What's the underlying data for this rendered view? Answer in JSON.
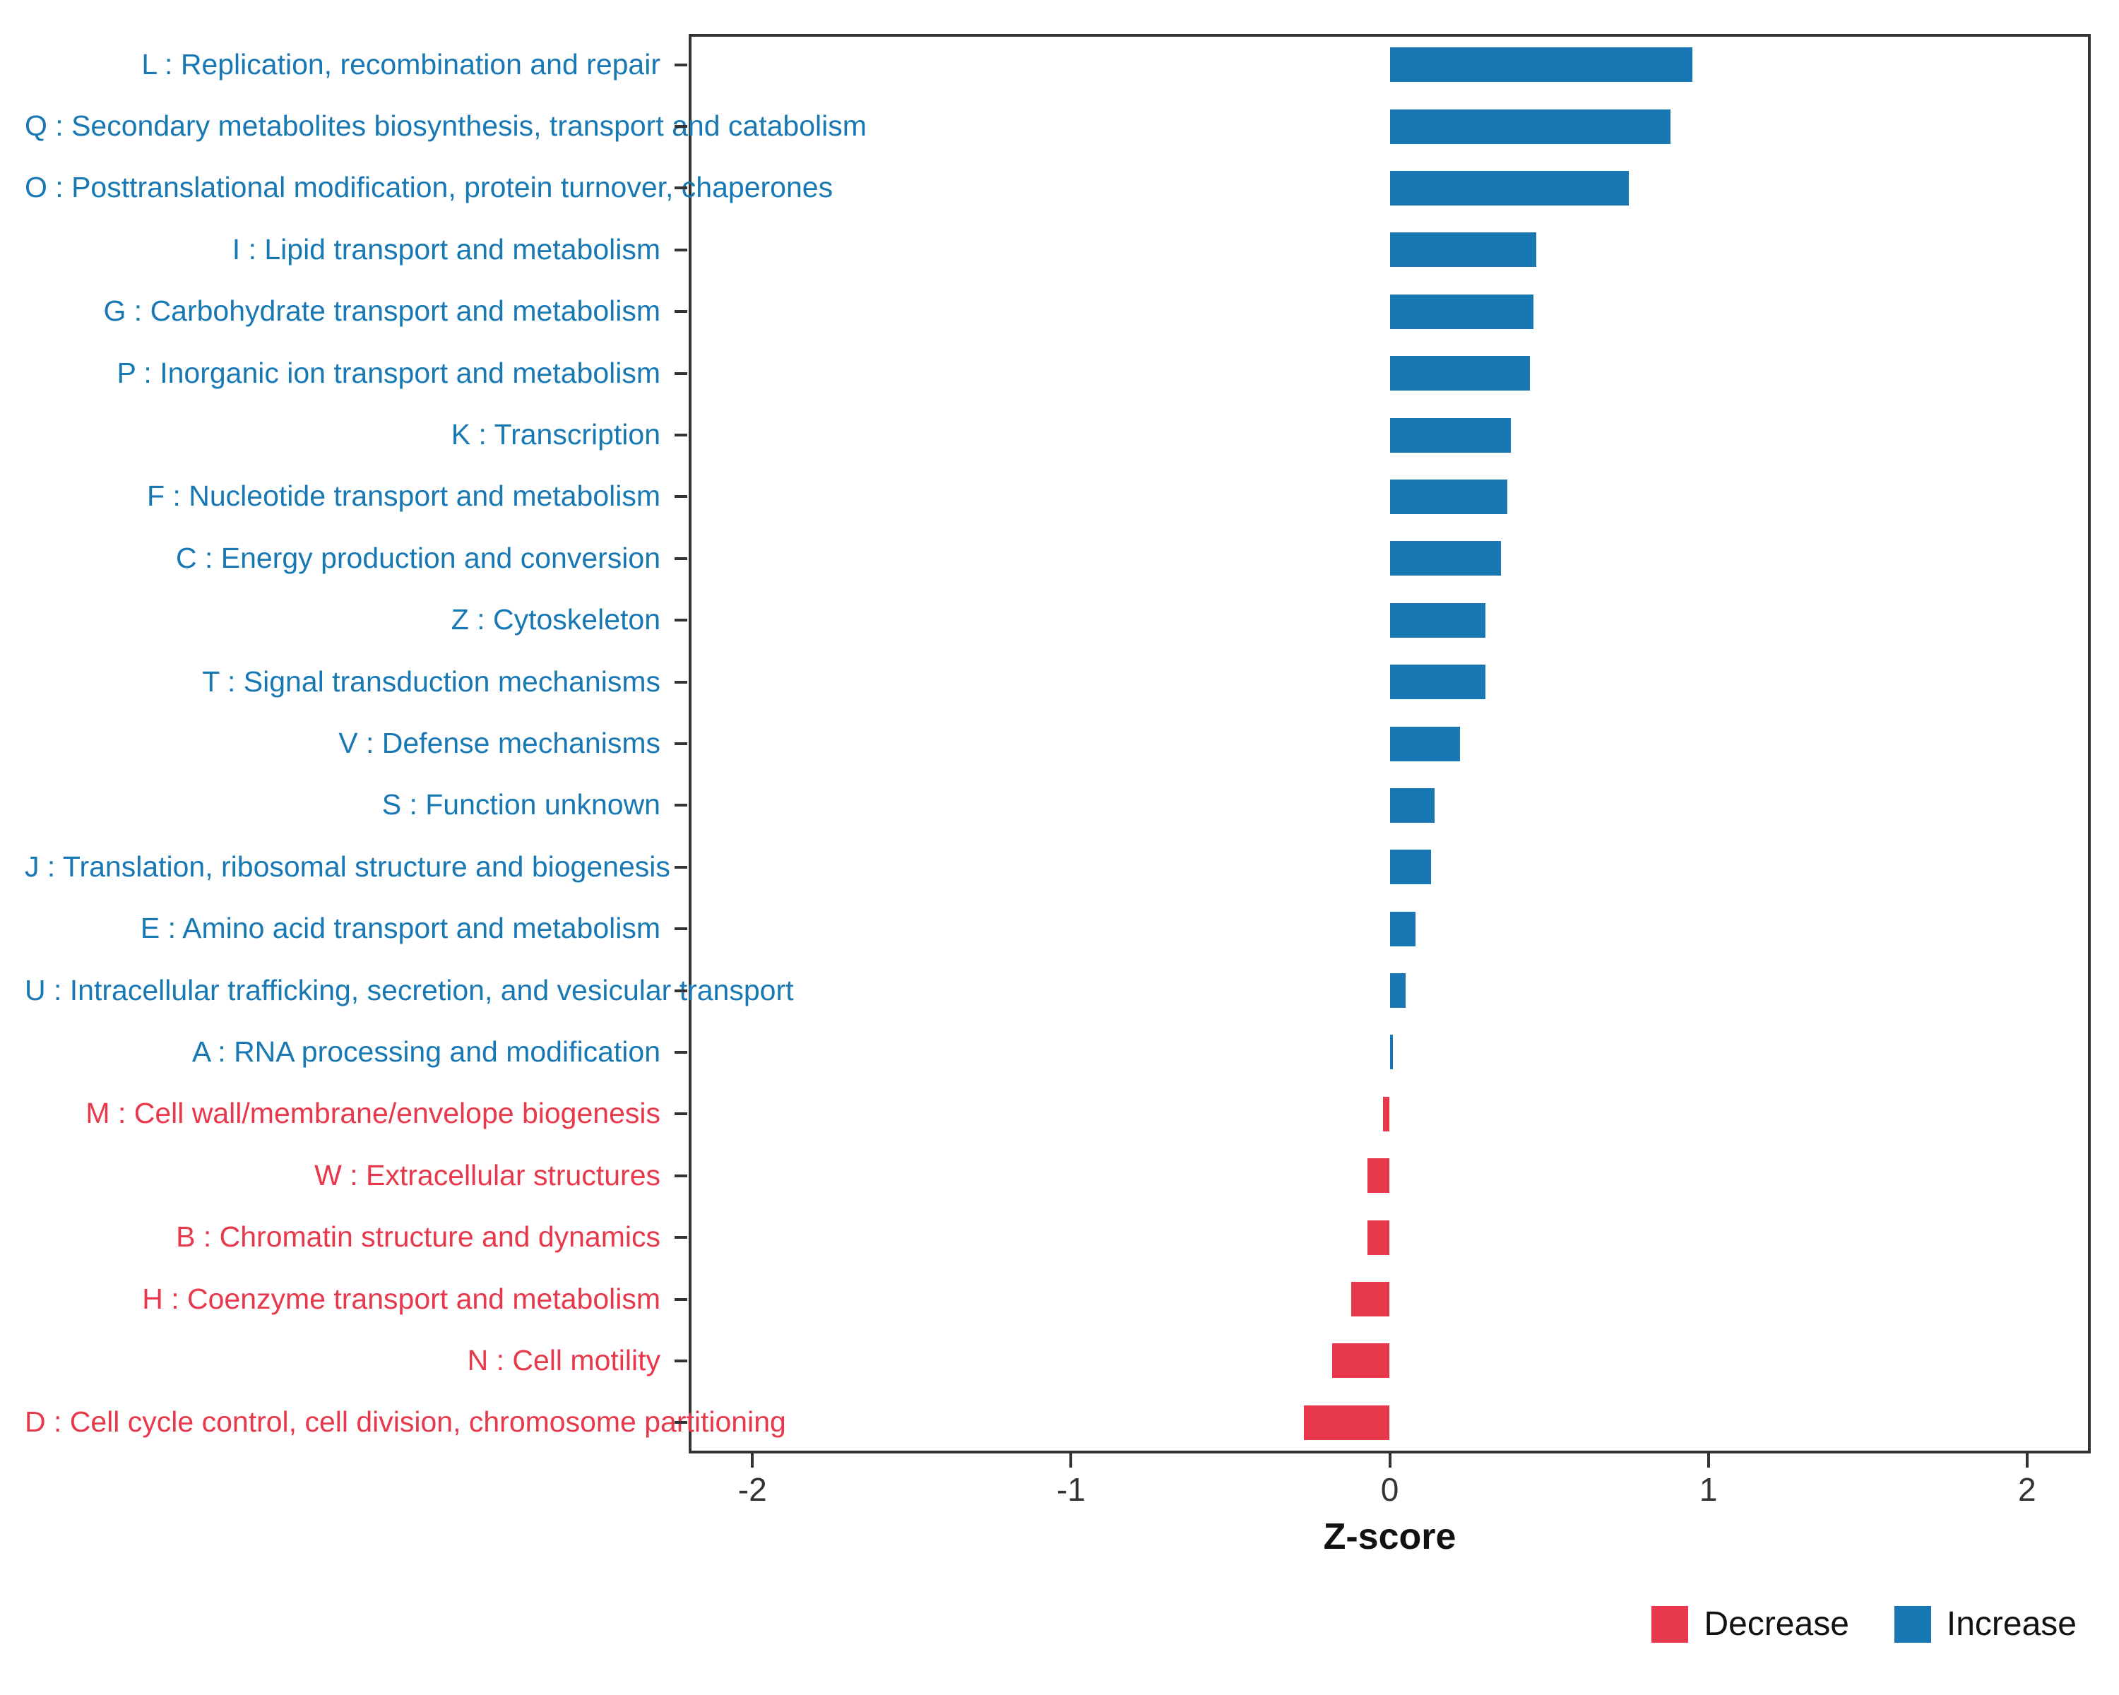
{
  "chart_data": {
    "type": "bar",
    "orientation": "horizontal",
    "xlabel": "Z-score",
    "xlim": [
      -2.2,
      2.2
    ],
    "xticks": [
      -2,
      -1,
      0,
      1,
      2
    ],
    "grid": false,
    "legend_position": "bottom-right",
    "colors": {
      "increase": "#1878B4",
      "decrease": "#E8384B",
      "axis_text": "#333333",
      "panel_border": "#333333"
    },
    "legend": [
      {
        "label": "Decrease",
        "color": "#E8384B"
      },
      {
        "label": "Increase",
        "color": "#1878B4"
      }
    ],
    "bars": [
      {
        "label": "L : Replication, recombination and repair",
        "value": 0.95,
        "direction": "increase"
      },
      {
        "label": "Q : Secondary metabolites biosynthesis, transport and catabolism",
        "value": 0.88,
        "direction": "increase"
      },
      {
        "label": "O : Posttranslational modification, protein turnover, chaperones",
        "value": 0.75,
        "direction": "increase"
      },
      {
        "label": "I : Lipid transport and metabolism",
        "value": 0.46,
        "direction": "increase"
      },
      {
        "label": "G : Carbohydrate transport and metabolism",
        "value": 0.45,
        "direction": "increase"
      },
      {
        "label": "P : Inorganic ion transport and metabolism",
        "value": 0.44,
        "direction": "increase"
      },
      {
        "label": "K : Transcription",
        "value": 0.38,
        "direction": "increase"
      },
      {
        "label": "F : Nucleotide transport and metabolism",
        "value": 0.37,
        "direction": "increase"
      },
      {
        "label": "C : Energy production and conversion",
        "value": 0.35,
        "direction": "increase"
      },
      {
        "label": "Z : Cytoskeleton",
        "value": 0.3,
        "direction": "increase"
      },
      {
        "label": "T : Signal transduction mechanisms",
        "value": 0.3,
        "direction": "increase"
      },
      {
        "label": "V : Defense mechanisms",
        "value": 0.22,
        "direction": "increase"
      },
      {
        "label": "S : Function unknown",
        "value": 0.14,
        "direction": "increase"
      },
      {
        "label": "J : Translation, ribosomal structure and biogenesis",
        "value": 0.13,
        "direction": "increase"
      },
      {
        "label": "E : Amino acid transport and metabolism",
        "value": 0.08,
        "direction": "increase"
      },
      {
        "label": "U : Intracellular trafficking, secretion, and vesicular transport",
        "value": 0.05,
        "direction": "increase"
      },
      {
        "label": "A : RNA processing and modification",
        "value": 0.01,
        "direction": "increase"
      },
      {
        "label": "M : Cell wall/membrane/envelope biogenesis",
        "value": -0.02,
        "direction": "decrease"
      },
      {
        "label": "W : Extracellular structures",
        "value": -0.07,
        "direction": "decrease"
      },
      {
        "label": "B : Chromatin structure and dynamics",
        "value": -0.07,
        "direction": "decrease"
      },
      {
        "label": "H : Coenzyme transport and metabolism",
        "value": -0.12,
        "direction": "decrease"
      },
      {
        "label": "N : Cell motility",
        "value": -0.18,
        "direction": "decrease"
      },
      {
        "label": "D : Cell cycle control, cell division, chromosome partitioning",
        "value": -0.27,
        "direction": "decrease"
      }
    ]
  }
}
